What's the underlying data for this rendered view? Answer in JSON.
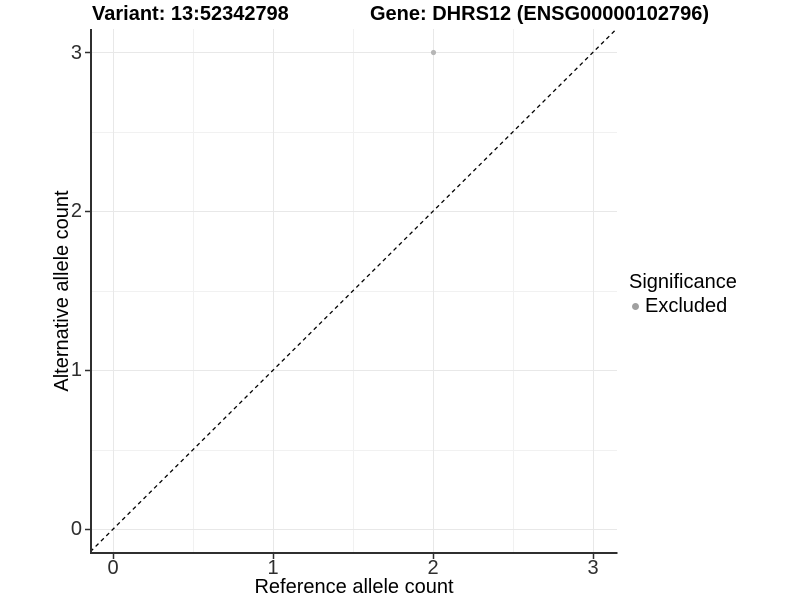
{
  "figure": {
    "title_left": "Variant: 13:52342798",
    "title_right": "Gene: DHRS12 (ENSG00000102796)"
  },
  "chart_data": {
    "type": "scatter",
    "title_left": "Variant: 13:52342798",
    "title_right": "Gene: DHRS12 (ENSG00000102796)",
    "xlabel": "Reference allele count",
    "ylabel": "Alternative allele count",
    "xlim": [
      -0.15,
      3.15
    ],
    "ylim": [
      -0.15,
      3.15
    ],
    "x_ticks": [
      "0",
      "1",
      "2",
      "3"
    ],
    "y_ticks": [
      "0",
      "1",
      "2",
      "3"
    ],
    "grid": "on",
    "minor_gridlines": [
      0.5,
      1.5,
      2.5
    ],
    "series": [
      {
        "name": "Excluded",
        "points": [
          {
            "x": 2,
            "y": 3
          }
        ]
      }
    ],
    "reference_line": {
      "type": "identity",
      "style": "dashed",
      "color": "#000000"
    },
    "legend": {
      "title": "Significance",
      "position": "right",
      "entries": [
        {
          "label": "Excluded",
          "color": "#a0a0a0"
        }
      ]
    },
    "colors": {
      "point": "#b6b6b6",
      "legend_key": "#a0a0a0",
      "grid_major": "#e8e8e8",
      "grid_minor": "#f1f1f1",
      "axis_line": "#2f2f2f",
      "background": "#ffffff"
    }
  }
}
